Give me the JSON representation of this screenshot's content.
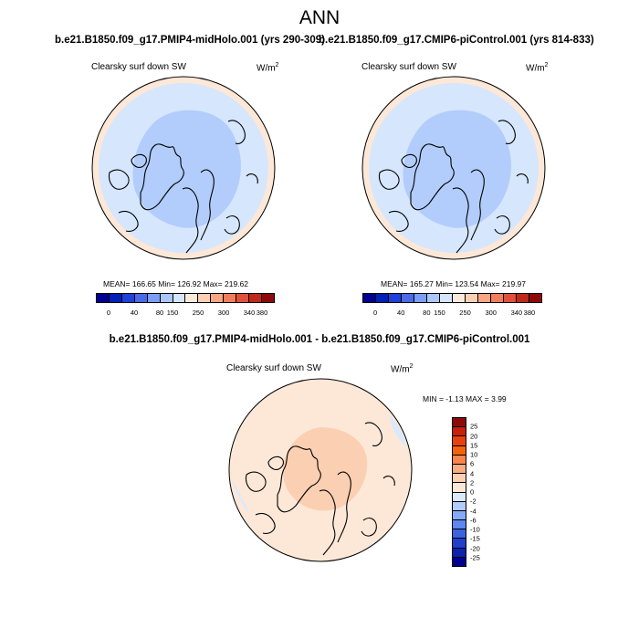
{
  "figure": {
    "title": "ANN",
    "case_left": "b.e21.B1850.f09_g17.PMIP4-midHolo.001 (yrs 290-309)",
    "case_right": "b.e21.B1850.f09_g17.CMIP6-piControl.001 (yrs 814-833)",
    "diff_title": "b.e21.B1850.f09_g17.PMIP4-midHolo.001 - b.e21.B1850.f09_g17.CMIP6-piControl.001"
  },
  "panels": [
    {
      "variable": "Clearsky surf down SW",
      "units_base": "W/m",
      "units_exp": "2",
      "stats": "MEAN= 166.65  Min= 126.92  Max= 219.62"
    },
    {
      "variable": "Clearsky surf down SW",
      "units_base": "W/m",
      "units_exp": "2",
      "stats": "MEAN= 165.27  Min= 123.54  Max= 219.97"
    }
  ],
  "diff_panel": {
    "variable": "Clearsky surf down SW",
    "units_base": "W/m",
    "units_exp": "2",
    "minmax": "MIN =  -1.13 MAX =   3.99"
  },
  "colorbar_abs": {
    "labels": [
      "0",
      "40",
      "80",
      "150",
      "250",
      "300",
      "340",
      "380"
    ],
    "colors": [
      "#000090",
      "#0020b8",
      "#2040d8",
      "#4a6ae8",
      "#7a9ef5",
      "#aac6fb",
      "#d4e6fd",
      "#fbeadb",
      "#fbcfb2",
      "#f9a684",
      "#f07d5c",
      "#e0503a",
      "#c0281c",
      "#8c0a0a"
    ]
  },
  "colorbar_diff": {
    "labels": [
      "25",
      "20",
      "15",
      "10",
      "6",
      "4",
      "2",
      "0",
      "-2",
      "-4",
      "-6",
      "-10",
      "-15",
      "-20",
      "-25"
    ],
    "colors": [
      "#8c0a0a",
      "#c81e0a",
      "#e8400f",
      "#f5620e",
      "#f7854e",
      "#f9ab82",
      "#fbcfb2",
      "#fde8d8",
      "#dbe9fd",
      "#b2cdfb",
      "#86abf5",
      "#5d86ee",
      "#3c62e0",
      "#2040cc",
      "#0d22b0",
      "#000090"
    ]
  },
  "map_colors": {
    "land_ocean_lowlat": "#fde8d8",
    "mid_band": "#d6e6fd",
    "polar_cap": "#b2cdfb",
    "diff_background": "#fde8d8",
    "diff_center": "#fbcfb2",
    "diff_negative": "#dbe9fd"
  }
}
